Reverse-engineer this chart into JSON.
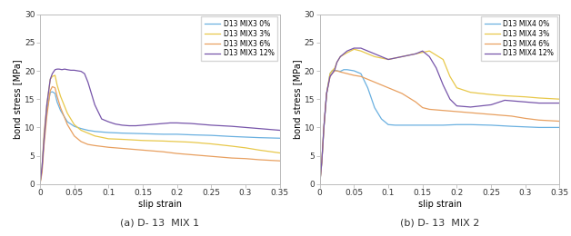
{
  "fig_width": 6.28,
  "fig_height": 2.6,
  "dpi": 100,
  "background_color": "#ffffff",
  "plot1": {
    "caption": "(a) D- 13  MIX 1",
    "xlabel": "slip strain",
    "ylabel": "bond stress [MPa]",
    "xlim": [
      0,
      0.35
    ],
    "ylim": [
      0,
      30
    ],
    "xticks": [
      0,
      0.05,
      0.1,
      0.15,
      0.2,
      0.25,
      0.3,
      0.35
    ],
    "xticklabels": [
      "0",
      "0.05",
      "0.1",
      "0.15",
      "0.2",
      "0.25",
      "0.3",
      "0.35"
    ],
    "yticks": [
      0,
      5,
      10,
      15,
      20,
      25,
      30
    ],
    "legend_labels": [
      "D13 MIX3 0%",
      "D13 MIX3 3%",
      "D13 MIX3 6%",
      "D13 MIX3 12%"
    ],
    "colors": [
      "#6ab0e0",
      "#e8c84a",
      "#e8a060",
      "#7755aa"
    ],
    "linewidth": 0.9,
    "series": [
      {
        "x": [
          0,
          0.003,
          0.006,
          0.01,
          0.015,
          0.018,
          0.022,
          0.025,
          0.03,
          0.04,
          0.05,
          0.06,
          0.07,
          0.08,
          0.1,
          0.12,
          0.15,
          0.18,
          0.2,
          0.22,
          0.25,
          0.28,
          0.3,
          0.32,
          0.35
        ],
        "y": [
          0,
          3,
          8,
          13,
          16.2,
          16.3,
          16.0,
          14.5,
          13.0,
          11.0,
          10.2,
          9.8,
          9.5,
          9.3,
          9.1,
          9.0,
          8.9,
          8.8,
          8.8,
          8.7,
          8.6,
          8.4,
          8.3,
          8.2,
          8.1
        ]
      },
      {
        "x": [
          0,
          0.003,
          0.006,
          0.01,
          0.015,
          0.018,
          0.022,
          0.025,
          0.03,
          0.04,
          0.05,
          0.06,
          0.07,
          0.08,
          0.1,
          0.12,
          0.15,
          0.18,
          0.2,
          0.22,
          0.25,
          0.28,
          0.3,
          0.32,
          0.35
        ],
        "y": [
          0,
          3,
          9,
          14,
          18.5,
          19.0,
          19.2,
          17.5,
          15.5,
          12.5,
          10.5,
          9.5,
          9.0,
          8.5,
          8.0,
          7.9,
          7.7,
          7.6,
          7.5,
          7.4,
          7.1,
          6.7,
          6.4,
          6.0,
          5.5
        ]
      },
      {
        "x": [
          0,
          0.003,
          0.006,
          0.01,
          0.015,
          0.018,
          0.022,
          0.025,
          0.03,
          0.04,
          0.05,
          0.06,
          0.07,
          0.08,
          0.1,
          0.12,
          0.15,
          0.18,
          0.2,
          0.22,
          0.25,
          0.28,
          0.3,
          0.32,
          0.35
        ],
        "y": [
          0,
          2,
          7,
          12,
          16.5,
          17.2,
          17.0,
          15.5,
          13.5,
          10.5,
          8.5,
          7.5,
          7.0,
          6.8,
          6.5,
          6.3,
          6.0,
          5.7,
          5.4,
          5.2,
          4.9,
          4.6,
          4.5,
          4.3,
          4.1
        ]
      },
      {
        "x": [
          0,
          0.003,
          0.006,
          0.01,
          0.015,
          0.018,
          0.022,
          0.025,
          0.028,
          0.032,
          0.036,
          0.04,
          0.045,
          0.05,
          0.055,
          0.06,
          0.065,
          0.07,
          0.08,
          0.09,
          0.1,
          0.11,
          0.12,
          0.13,
          0.14,
          0.15,
          0.16,
          0.17,
          0.18,
          0.19,
          0.2,
          0.22,
          0.25,
          0.28,
          0.3,
          0.32,
          0.35
        ],
        "y": [
          0,
          3,
          8,
          14,
          18.5,
          19.5,
          20.2,
          20.3,
          20.3,
          20.2,
          20.3,
          20.2,
          20.1,
          20.1,
          20.0,
          19.9,
          19.5,
          18.0,
          14.0,
          11.5,
          11.0,
          10.6,
          10.4,
          10.3,
          10.3,
          10.4,
          10.5,
          10.6,
          10.7,
          10.8,
          10.8,
          10.7,
          10.4,
          10.2,
          10.0,
          9.8,
          9.5
        ]
      }
    ]
  },
  "plot2": {
    "caption": "(b) D- 13  MIX 2",
    "xlabel": "slip strain",
    "ylabel": "bond stress [MPa]",
    "xlim": [
      0,
      0.35
    ],
    "ylim": [
      0,
      30
    ],
    "xticks": [
      0,
      0.05,
      0.1,
      0.15,
      0.2,
      0.25,
      0.3,
      0.35
    ],
    "xticklabels": [
      "0",
      "0.05",
      "0.1",
      "0.15",
      "0.2",
      "0.25",
      "0.3",
      "0.35"
    ],
    "yticks": [
      0,
      5,
      10,
      15,
      20,
      25,
      30
    ],
    "legend_labels": [
      "D13 MIX4 0%",
      "D13 MIX4 3%",
      "D13 MIX4 6%",
      "D13 MIX4 12%"
    ],
    "colors": [
      "#6ab0e0",
      "#e8c84a",
      "#e8a060",
      "#7755aa"
    ],
    "linewidth": 0.9,
    "series": [
      {
        "x": [
          0,
          0.003,
          0.006,
          0.01,
          0.015,
          0.018,
          0.022,
          0.025,
          0.03,
          0.035,
          0.04,
          0.045,
          0.05,
          0.06,
          0.07,
          0.08,
          0.09,
          0.1,
          0.11,
          0.12,
          0.15,
          0.18,
          0.2,
          0.22,
          0.25,
          0.28,
          0.3,
          0.32,
          0.35
        ],
        "y": [
          0,
          4,
          10,
          16,
          19.5,
          20.0,
          20.1,
          20.0,
          19.9,
          20.2,
          20.2,
          20.1,
          20.0,
          19.5,
          17.0,
          13.5,
          11.5,
          10.5,
          10.4,
          10.4,
          10.4,
          10.4,
          10.5,
          10.5,
          10.4,
          10.2,
          10.1,
          10.0,
          10.0
        ]
      },
      {
        "x": [
          0,
          0.003,
          0.006,
          0.01,
          0.015,
          0.018,
          0.022,
          0.025,
          0.03,
          0.04,
          0.05,
          0.06,
          0.07,
          0.08,
          0.1,
          0.12,
          0.14,
          0.16,
          0.18,
          0.19,
          0.2,
          0.22,
          0.25,
          0.27,
          0.3,
          0.32,
          0.35
        ],
        "y": [
          0,
          4,
          10,
          16,
          19.5,
          20.0,
          20.5,
          21.5,
          22.5,
          23.2,
          23.8,
          23.5,
          23.0,
          22.5,
          22.0,
          22.5,
          23.0,
          23.5,
          22.0,
          19.0,
          17.0,
          16.2,
          15.8,
          15.6,
          15.4,
          15.2,
          15.0
        ]
      },
      {
        "x": [
          0,
          0.003,
          0.006,
          0.01,
          0.015,
          0.018,
          0.022,
          0.025,
          0.03,
          0.04,
          0.05,
          0.06,
          0.07,
          0.08,
          0.1,
          0.12,
          0.14,
          0.15,
          0.16,
          0.18,
          0.2,
          0.22,
          0.25,
          0.28,
          0.3,
          0.32,
          0.35
        ],
        "y": [
          0,
          4,
          10,
          16,
          19.0,
          19.5,
          20.0,
          20.0,
          19.8,
          19.5,
          19.2,
          19.0,
          18.5,
          18.0,
          17.0,
          16.0,
          14.5,
          13.5,
          13.2,
          13.0,
          12.8,
          12.6,
          12.3,
          12.0,
          11.6,
          11.3,
          11.1
        ]
      },
      {
        "x": [
          0,
          0.003,
          0.006,
          0.01,
          0.015,
          0.018,
          0.022,
          0.025,
          0.03,
          0.04,
          0.05,
          0.06,
          0.07,
          0.08,
          0.1,
          0.12,
          0.14,
          0.15,
          0.16,
          0.17,
          0.18,
          0.19,
          0.2,
          0.22,
          0.25,
          0.27,
          0.3,
          0.32,
          0.35
        ],
        "y": [
          0,
          4,
          10,
          16,
          19.0,
          19.5,
          20.2,
          21.5,
          22.5,
          23.5,
          24.0,
          24.0,
          23.5,
          23.0,
          22.0,
          22.5,
          23.0,
          23.5,
          22.5,
          20.5,
          17.5,
          15.0,
          13.8,
          13.6,
          14.0,
          14.8,
          14.5,
          14.3,
          14.3
        ]
      }
    ]
  }
}
